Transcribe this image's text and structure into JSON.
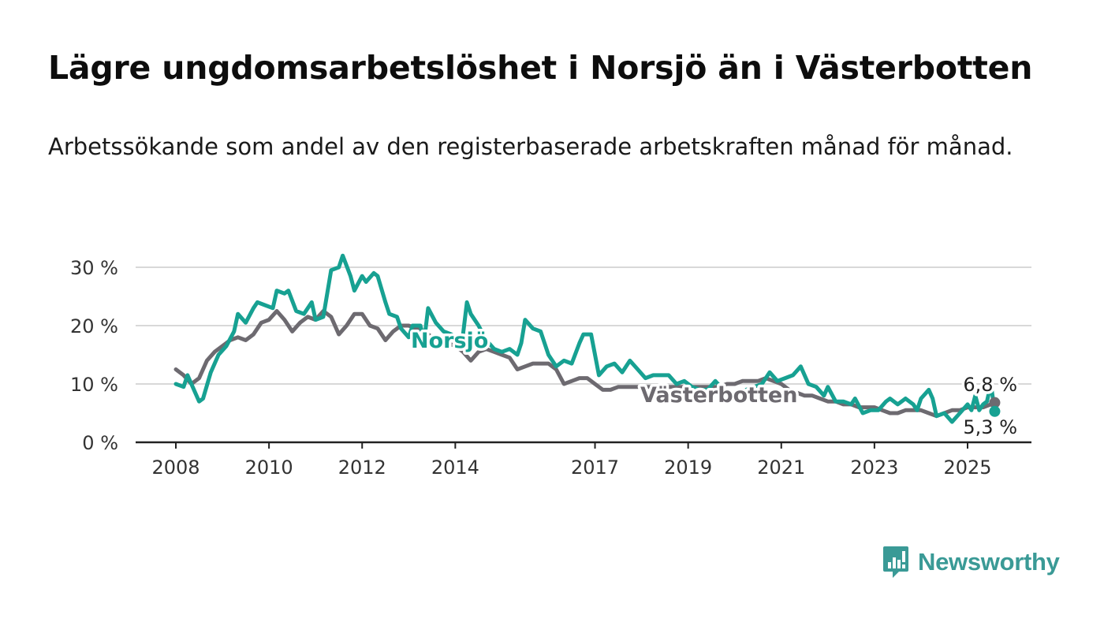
{
  "title": "Lägre ungdomsarbetslöshet i Norsjö än i Västerbotten",
  "subtitle": "Arbetssökande som andel av den registerbaserade arbetskraften månad för månad.",
  "logo": "Newsworthy",
  "colors": {
    "norsjo": "#17a192",
    "vasterbotten": "#6d6a70",
    "grid": "#d8d8d8",
    "axis": "#222222"
  },
  "chart_data": {
    "type": "line",
    "title": "Lägre ungdomsarbetslöshet i Norsjö än i Västerbotten",
    "subtitle": "Arbetssökande som andel av den registerbaserade arbetskraften månad för månad.",
    "xlabel": "",
    "ylabel": "",
    "ylim": [
      0,
      30
    ],
    "y_ticks": [
      "0 %",
      "10 %",
      "20 %",
      "30 %"
    ],
    "x_ticks": [
      "2008",
      "2010",
      "2012",
      "2014",
      "2017",
      "2019",
      "2021",
      "2023",
      "2025"
    ],
    "grid": true,
    "end_labels": {
      "vasterbotten": "6,8 %",
      "norsjo": "5,3 %"
    },
    "series": [
      {
        "name": "Västerbotten",
        "points": [
          [
            "2008-01",
            12.5
          ],
          [
            "2008-03",
            11.5
          ],
          [
            "2008-05",
            10.0
          ],
          [
            "2008-07",
            11.0
          ],
          [
            "2008-09",
            14.0
          ],
          [
            "2008-11",
            15.5
          ],
          [
            "2009-01",
            16.5
          ],
          [
            "2009-03",
            17.5
          ],
          [
            "2009-05",
            18.0
          ],
          [
            "2009-07",
            17.5
          ],
          [
            "2009-09",
            18.5
          ],
          [
            "2009-11",
            20.5
          ],
          [
            "2010-01",
            21.0
          ],
          [
            "2010-03",
            22.5
          ],
          [
            "2010-05",
            21.0
          ],
          [
            "2010-07",
            19.0
          ],
          [
            "2010-09",
            20.5
          ],
          [
            "2010-11",
            21.5
          ],
          [
            "2011-01",
            21.0
          ],
          [
            "2011-03",
            22.5
          ],
          [
            "2011-05",
            21.5
          ],
          [
            "2011-07",
            18.5
          ],
          [
            "2011-09",
            20.0
          ],
          [
            "2011-11",
            22.0
          ],
          [
            "2012-01",
            22.0
          ],
          [
            "2012-03",
            20.0
          ],
          [
            "2012-05",
            19.5
          ],
          [
            "2012-07",
            17.5
          ],
          [
            "2012-09",
            19.0
          ],
          [
            "2012-11",
            20.0
          ],
          [
            "2013-01",
            20.0
          ],
          [
            "2013-03",
            19.5
          ],
          [
            "2013-05",
            19.0
          ],
          [
            "2013-07",
            18.0
          ],
          [
            "2013-09",
            17.5
          ],
          [
            "2013-11",
            17.0
          ],
          [
            "2014-01",
            16.5
          ],
          [
            "2014-03",
            15.5
          ],
          [
            "2014-05",
            14.0
          ],
          [
            "2014-07",
            15.5
          ],
          [
            "2014-09",
            16.0
          ],
          [
            "2014-11",
            15.5
          ],
          [
            "2015-01",
            15.0
          ],
          [
            "2015-03",
            14.5
          ],
          [
            "2015-05",
            12.5
          ],
          [
            "2015-07",
            13.0
          ],
          [
            "2015-09",
            13.5
          ],
          [
            "2015-11",
            13.5
          ],
          [
            "2016-01",
            13.5
          ],
          [
            "2016-03",
            12.5
          ],
          [
            "2016-05",
            10.0
          ],
          [
            "2016-07",
            10.5
          ],
          [
            "2016-09",
            11.0
          ],
          [
            "2016-11",
            11.0
          ],
          [
            "2017-01",
            10.0
          ],
          [
            "2017-03",
            9.0
          ],
          [
            "2017-05",
            9.0
          ],
          [
            "2017-07",
            9.5
          ],
          [
            "2017-09",
            9.5
          ],
          [
            "2017-11",
            9.5
          ],
          [
            "2018-01",
            9.5
          ],
          [
            "2018-03",
            9.5
          ],
          [
            "2018-05",
            9.5
          ],
          [
            "2018-07",
            9.5
          ],
          [
            "2018-09",
            9.5
          ],
          [
            "2018-11",
            9.5
          ],
          [
            "2019-01",
            9.5
          ],
          [
            "2019-03",
            9.5
          ],
          [
            "2019-05",
            9.5
          ],
          [
            "2019-07",
            9.5
          ],
          [
            "2019-09",
            9.5
          ],
          [
            "2019-11",
            10.0
          ],
          [
            "2020-01",
            10.0
          ],
          [
            "2020-03",
            10.5
          ],
          [
            "2020-05",
            10.5
          ],
          [
            "2020-07",
            10.5
          ],
          [
            "2020-09",
            11.0
          ],
          [
            "2020-11",
            10.5
          ],
          [
            "2021-01",
            10.0
          ],
          [
            "2021-03",
            9.0
          ],
          [
            "2021-05",
            8.5
          ],
          [
            "2021-07",
            8.0
          ],
          [
            "2021-09",
            8.0
          ],
          [
            "2021-11",
            7.5
          ],
          [
            "2022-01",
            7.0
          ],
          [
            "2022-03",
            7.0
          ],
          [
            "2022-05",
            6.5
          ],
          [
            "2022-07",
            6.5
          ],
          [
            "2022-09",
            6.0
          ],
          [
            "2022-11",
            6.0
          ],
          [
            "2023-01",
            6.0
          ],
          [
            "2023-03",
            5.5
          ],
          [
            "2023-05",
            5.0
          ],
          [
            "2023-07",
            5.0
          ],
          [
            "2023-09",
            5.5
          ],
          [
            "2023-11",
            5.5
          ],
          [
            "2024-01",
            5.5
          ],
          [
            "2024-03",
            5.0
          ],
          [
            "2024-05",
            4.5
          ],
          [
            "2024-07",
            5.0
          ],
          [
            "2024-09",
            5.5
          ],
          [
            "2024-11",
            5.5
          ],
          [
            "2025-01",
            6.0
          ],
          [
            "2025-03",
            6.0
          ],
          [
            "2025-05",
            6.0
          ],
          [
            "2025-07",
            6.5
          ],
          [
            "2025-08",
            6.8
          ]
        ]
      },
      {
        "name": "Norsjö",
        "points": [
          [
            "2008-01",
            10.0
          ],
          [
            "2008-03",
            9.5
          ],
          [
            "2008-04",
            11.5
          ],
          [
            "2008-06",
            8.5
          ],
          [
            "2008-07",
            7.0
          ],
          [
            "2008-08",
            7.5
          ],
          [
            "2008-10",
            12.0
          ],
          [
            "2008-12",
            15.0
          ],
          [
            "2009-02",
            16.5
          ],
          [
            "2009-04",
            19.0
          ],
          [
            "2009-05",
            22.0
          ],
          [
            "2009-07",
            20.5
          ],
          [
            "2009-09",
            23.0
          ],
          [
            "2009-10",
            24.0
          ],
          [
            "2009-12",
            23.5
          ],
          [
            "2010-02",
            23.0
          ],
          [
            "2010-03",
            26.0
          ],
          [
            "2010-05",
            25.5
          ],
          [
            "2010-06",
            26.0
          ],
          [
            "2010-08",
            22.5
          ],
          [
            "2010-10",
            22.0
          ],
          [
            "2010-12",
            24.0
          ],
          [
            "2011-01",
            21.0
          ],
          [
            "2011-03",
            21.5
          ],
          [
            "2011-05",
            29.5
          ],
          [
            "2011-07",
            30.0
          ],
          [
            "2011-08",
            32.0
          ],
          [
            "2011-10",
            28.5
          ],
          [
            "2011-11",
            26.0
          ],
          [
            "2012-01",
            28.5
          ],
          [
            "2012-02",
            27.5
          ],
          [
            "2012-04",
            29.0
          ],
          [
            "2012-05",
            28.5
          ],
          [
            "2012-07",
            24.0
          ],
          [
            "2012-08",
            22.0
          ],
          [
            "2012-10",
            21.5
          ],
          [
            "2012-11",
            19.5
          ],
          [
            "2013-01",
            18.0
          ],
          [
            "2013-02",
            20.0
          ],
          [
            "2013-04",
            20.0
          ],
          [
            "2013-05",
            17.5
          ],
          [
            "2013-06",
            23.0
          ],
          [
            "2013-08",
            20.5
          ],
          [
            "2013-10",
            19.0
          ],
          [
            "2013-12",
            18.5
          ],
          [
            "2014-02",
            17.5
          ],
          [
            "2014-03",
            18.5
          ],
          [
            "2014-04",
            24.0
          ],
          [
            "2014-05",
            22.0
          ],
          [
            "2014-07",
            20.0
          ],
          [
            "2014-09",
            17.5
          ],
          [
            "2014-11",
            16.0
          ],
          [
            "2015-01",
            15.5
          ],
          [
            "2015-03",
            16.0
          ],
          [
            "2015-05",
            15.0
          ],
          [
            "2015-06",
            17.0
          ],
          [
            "2015-07",
            21.0
          ],
          [
            "2015-09",
            19.5
          ],
          [
            "2015-11",
            19.0
          ],
          [
            "2016-01",
            15.0
          ],
          [
            "2016-03",
            13.0
          ],
          [
            "2016-05",
            14.0
          ],
          [
            "2016-07",
            13.5
          ],
          [
            "2016-09",
            17.0
          ],
          [
            "2016-10",
            18.5
          ],
          [
            "2016-12",
            18.5
          ],
          [
            "2017-02",
            11.5
          ],
          [
            "2017-04",
            13.0
          ],
          [
            "2017-06",
            13.5
          ],
          [
            "2017-08",
            12.0
          ],
          [
            "2017-10",
            14.0
          ],
          [
            "2017-12",
            12.5
          ],
          [
            "2018-02",
            11.0
          ],
          [
            "2018-04",
            11.5
          ],
          [
            "2018-06",
            11.5
          ],
          [
            "2018-08",
            11.5
          ],
          [
            "2018-10",
            10.0
          ],
          [
            "2018-12",
            10.5
          ],
          [
            "2019-02",
            9.5
          ],
          [
            "2019-04",
            9.0
          ],
          [
            "2019-06",
            9.0
          ],
          [
            "2019-08",
            10.5
          ],
          [
            "2019-10",
            9.0
          ],
          [
            "2019-12",
            8.0
          ],
          [
            "2020-02",
            7.0
          ],
          [
            "2020-04",
            9.0
          ],
          [
            "2020-06",
            9.5
          ],
          [
            "2020-08",
            10.0
          ],
          [
            "2020-10",
            12.0
          ],
          [
            "2020-12",
            10.5
          ],
          [
            "2021-02",
            11.0
          ],
          [
            "2021-04",
            11.5
          ],
          [
            "2021-06",
            13.0
          ],
          [
            "2021-08",
            10.0
          ],
          [
            "2021-10",
            9.5
          ],
          [
            "2021-12",
            8.0
          ],
          [
            "2022-01",
            9.5
          ],
          [
            "2022-03",
            7.0
          ],
          [
            "2022-05",
            7.0
          ],
          [
            "2022-07",
            6.5
          ],
          [
            "2022-08",
            7.5
          ],
          [
            "2022-10",
            5.0
          ],
          [
            "2022-12",
            5.5
          ],
          [
            "2023-02",
            5.5
          ],
          [
            "2023-04",
            7.0
          ],
          [
            "2023-05",
            7.5
          ],
          [
            "2023-07",
            6.5
          ],
          [
            "2023-09",
            7.5
          ],
          [
            "2023-11",
            6.5
          ],
          [
            "2023-12",
            5.5
          ],
          [
            "2024-01",
            7.5
          ],
          [
            "2024-03",
            9.0
          ],
          [
            "2024-04",
            7.5
          ],
          [
            "2024-05",
            4.5
          ],
          [
            "2024-07",
            5.0
          ],
          [
            "2024-09",
            3.5
          ],
          [
            "2024-11",
            5.0
          ],
          [
            "2025-01",
            6.5
          ],
          [
            "2025-02",
            5.5
          ],
          [
            "2025-03",
            8.0
          ],
          [
            "2025-04",
            5.5
          ],
          [
            "2025-05",
            6.5
          ],
          [
            "2025-06",
            7.0
          ],
          [
            "2025-07",
            10.0
          ],
          [
            "2025-08",
            5.3
          ]
        ]
      }
    ]
  }
}
